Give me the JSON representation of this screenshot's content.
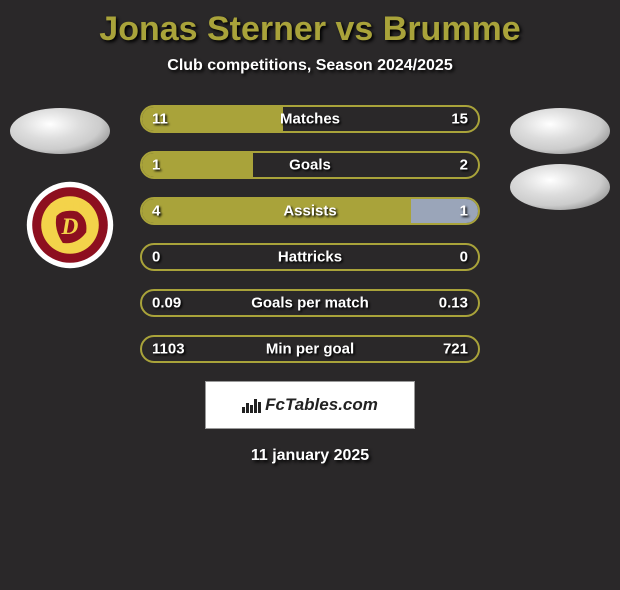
{
  "title_color": "#a9a33a",
  "title": "Jonas Sterner vs Brumme",
  "subtitle": "Club competitions, Season 2024/2025",
  "left_color": "#a9a33a",
  "right_color": "#9aa5b9",
  "background_color": "#2a2829",
  "bar_border_color": "#a9a33a",
  "rows": [
    {
      "label": "Matches",
      "left": "11",
      "right": "15",
      "left_pct": 42,
      "right_pct": 0
    },
    {
      "label": "Goals",
      "left": "1",
      "right": "2",
      "left_pct": 33,
      "right_pct": 0
    },
    {
      "label": "Assists",
      "left": "4",
      "right": "1",
      "left_pct": 80,
      "right_pct": 20
    },
    {
      "label": "Hattricks",
      "left": "0",
      "right": "0",
      "left_pct": 0,
      "right_pct": 0
    },
    {
      "label": "Goals per match",
      "left": "0.09",
      "right": "0.13",
      "left_pct": 0,
      "right_pct": 0
    },
    {
      "label": "Min per goal",
      "left": "1103",
      "right": "721",
      "left_pct": 0,
      "right_pct": 0
    }
  ],
  "footer_brand": "FcTables.com",
  "footer_date": "11 january 2025",
  "dresden_logo": {
    "outer": "#ffffff",
    "ring": "#8d0f1f",
    "inner": "#f3d34a",
    "text": "DRESDEN"
  }
}
